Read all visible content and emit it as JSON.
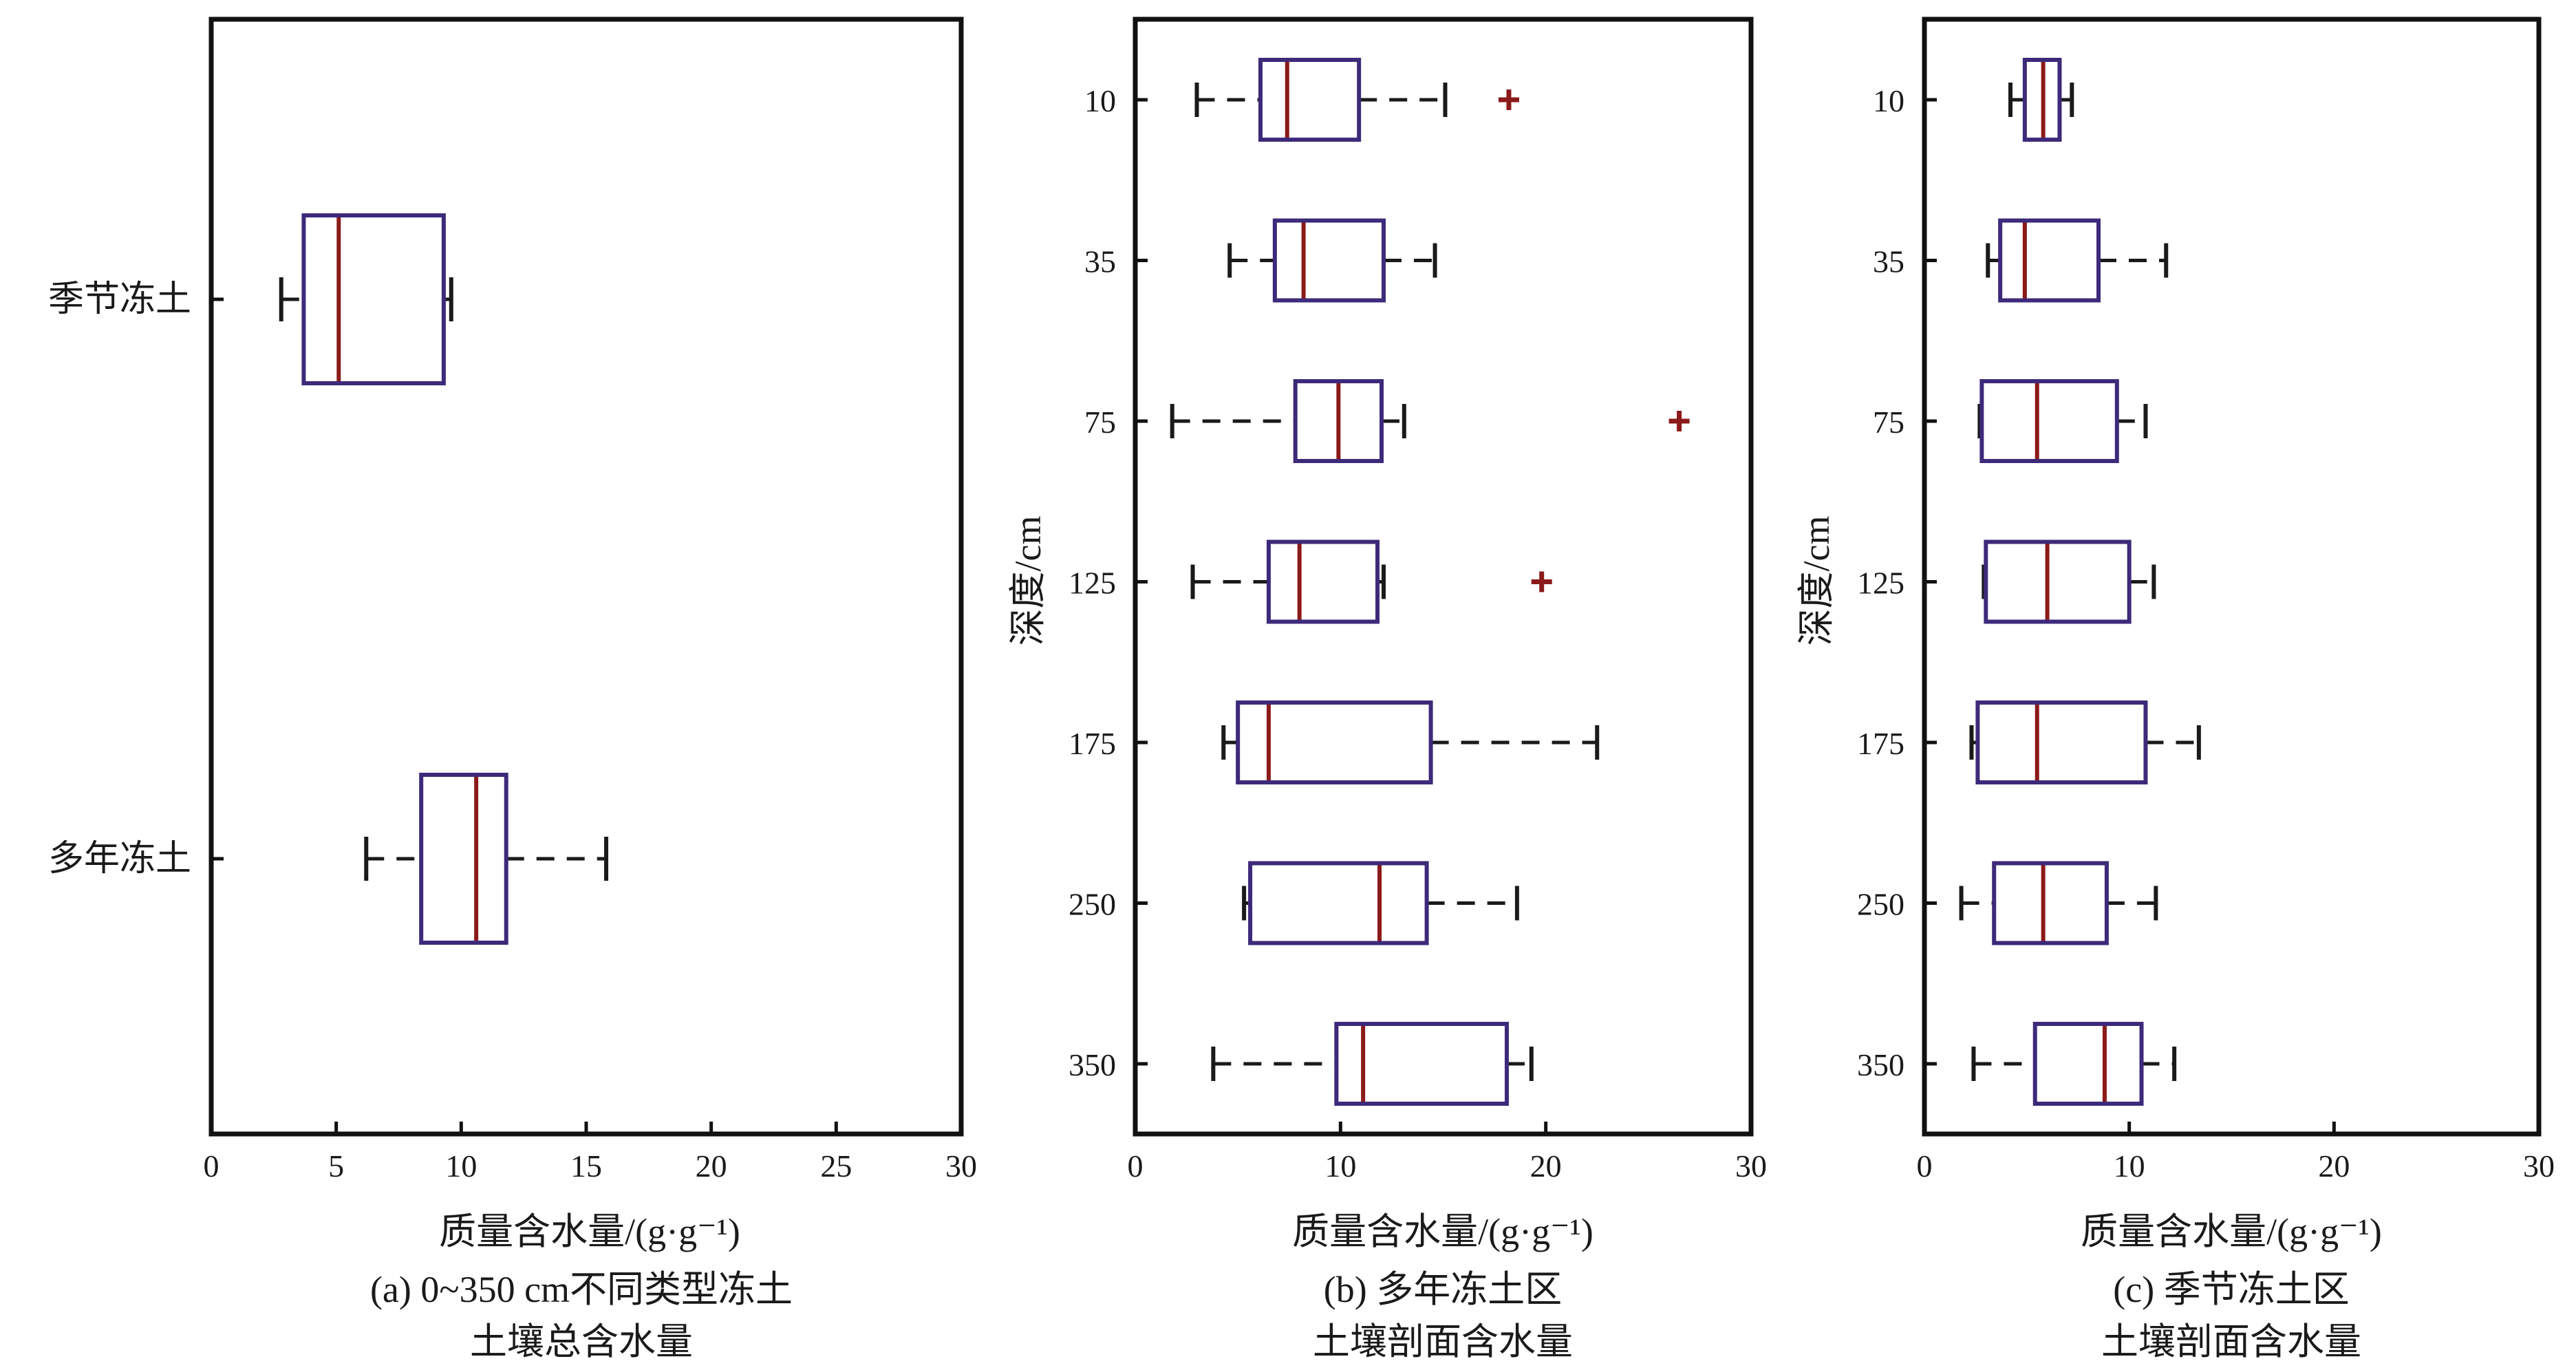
{
  "charts": [
    {
      "id": "a",
      "xlabel": "质量含水量/(g·g⁻¹)",
      "ylabel": "",
      "caption_line1": "(a) 0~350 cm不同类型冻土",
      "caption_line2": "土壤总含水量"
    },
    {
      "id": "b",
      "xlabel": "质量含水量/(g·g⁻¹)",
      "ylabel": "深度/cm",
      "caption_line1": "(b) 多年冻土区",
      "caption_line2": "土壤剖面含水量"
    },
    {
      "id": "c",
      "xlabel": "质量含水量/(g·g⁻¹)",
      "ylabel": "深度/cm",
      "caption_line1": "(c) 季节冻土区",
      "caption_line2": "土壤剖面含水量"
    }
  ],
  "chart_data": [
    {
      "type": "boxplot",
      "orientation": "horizontal",
      "xlabel": "质量含水量/(g·g⁻¹)",
      "xlim": [
        0,
        30
      ],
      "xticks": [
        0,
        5,
        10,
        15,
        20,
        25,
        30
      ],
      "categories": [
        "季节冻土",
        "多年冻土"
      ],
      "boxes": [
        {
          "category": "季节冻土",
          "whisker_low": 2.8,
          "q1": 3.7,
          "median": 5.1,
          "q3": 9.3,
          "whisker_high": 9.6,
          "outliers": []
        },
        {
          "category": "多年冻土",
          "whisker_low": 6.2,
          "q1": 8.4,
          "median": 10.6,
          "q3": 11.8,
          "whisker_high": 15.8,
          "outliers": []
        }
      ],
      "colors": {
        "box": "#3d2a7a",
        "median": "#8b1a1a",
        "whisker": "#1a1a1a",
        "outlier": "#8b1a1a"
      }
    },
    {
      "type": "boxplot",
      "orientation": "horizontal",
      "xlabel": "质量含水量/(g·g⁻¹)",
      "ylabel": "深度/cm",
      "xlim": [
        0,
        30
      ],
      "xticks": [
        0,
        10,
        20,
        30
      ],
      "categories": [
        "10",
        "35",
        "75",
        "125",
        "175",
        "250",
        "350"
      ],
      "boxes": [
        {
          "category": "10",
          "whisker_low": 3.0,
          "q1": 6.1,
          "median": 7.4,
          "q3": 10.9,
          "whisker_high": 15.1,
          "outliers": [
            18.2
          ]
        },
        {
          "category": "35",
          "whisker_low": 4.6,
          "q1": 6.8,
          "median": 8.2,
          "q3": 12.1,
          "whisker_high": 14.6,
          "outliers": []
        },
        {
          "category": "75",
          "whisker_low": 1.8,
          "q1": 7.8,
          "median": 9.9,
          "q3": 12.0,
          "whisker_high": 13.1,
          "outliers": [
            26.5
          ]
        },
        {
          "category": "125",
          "whisker_low": 2.8,
          "q1": 6.5,
          "median": 8.0,
          "q3": 11.8,
          "whisker_high": 12.1,
          "outliers": [
            19.8
          ]
        },
        {
          "category": "175",
          "whisker_low": 4.3,
          "q1": 5.0,
          "median": 6.5,
          "q3": 14.4,
          "whisker_high": 22.5,
          "outliers": []
        },
        {
          "category": "250",
          "whisker_low": 5.3,
          "q1": 5.6,
          "median": 11.9,
          "q3": 14.2,
          "whisker_high": 18.6,
          "outliers": []
        },
        {
          "category": "350",
          "whisker_low": 3.8,
          "q1": 9.8,
          "median": 11.1,
          "q3": 18.1,
          "whisker_high": 19.3,
          "outliers": []
        }
      ],
      "colors": {
        "box": "#3d2a7a",
        "median": "#8b1a1a",
        "whisker": "#1a1a1a",
        "outlier": "#8b1a1a"
      }
    },
    {
      "type": "boxplot",
      "orientation": "horizontal",
      "xlabel": "质量含水量/(g·g⁻¹)",
      "ylabel": "深度/cm",
      "xlim": [
        0,
        30
      ],
      "xticks": [
        0,
        10,
        20,
        30
      ],
      "categories": [
        "10",
        "35",
        "75",
        "125",
        "175",
        "250",
        "350"
      ],
      "boxes": [
        {
          "category": "10",
          "whisker_low": 4.2,
          "q1": 4.9,
          "median": 5.8,
          "q3": 6.6,
          "whisker_high": 7.2,
          "outliers": []
        },
        {
          "category": "35",
          "whisker_low": 3.1,
          "q1": 3.7,
          "median": 4.9,
          "q3": 8.5,
          "whisker_high": 11.8,
          "outliers": []
        },
        {
          "category": "75",
          "whisker_low": 2.7,
          "q1": 2.8,
          "median": 5.5,
          "q3": 9.4,
          "whisker_high": 10.8,
          "outliers": []
        },
        {
          "category": "125",
          "whisker_low": 2.9,
          "q1": 3.0,
          "median": 6.0,
          "q3": 10.0,
          "whisker_high": 11.2,
          "outliers": []
        },
        {
          "category": "175",
          "whisker_low": 2.3,
          "q1": 2.6,
          "median": 5.5,
          "q3": 10.8,
          "whisker_high": 13.4,
          "outliers": []
        },
        {
          "category": "250",
          "whisker_low": 1.8,
          "q1": 3.4,
          "median": 5.8,
          "q3": 8.9,
          "whisker_high": 11.3,
          "outliers": []
        },
        {
          "category": "350",
          "whisker_low": 2.4,
          "q1": 5.4,
          "median": 8.8,
          "q3": 10.6,
          "whisker_high": 12.2,
          "outliers": []
        }
      ],
      "colors": {
        "box": "#3d2a7a",
        "median": "#8b1a1a",
        "whisker": "#1a1a1a",
        "outlier": "#8b1a1a"
      }
    }
  ]
}
